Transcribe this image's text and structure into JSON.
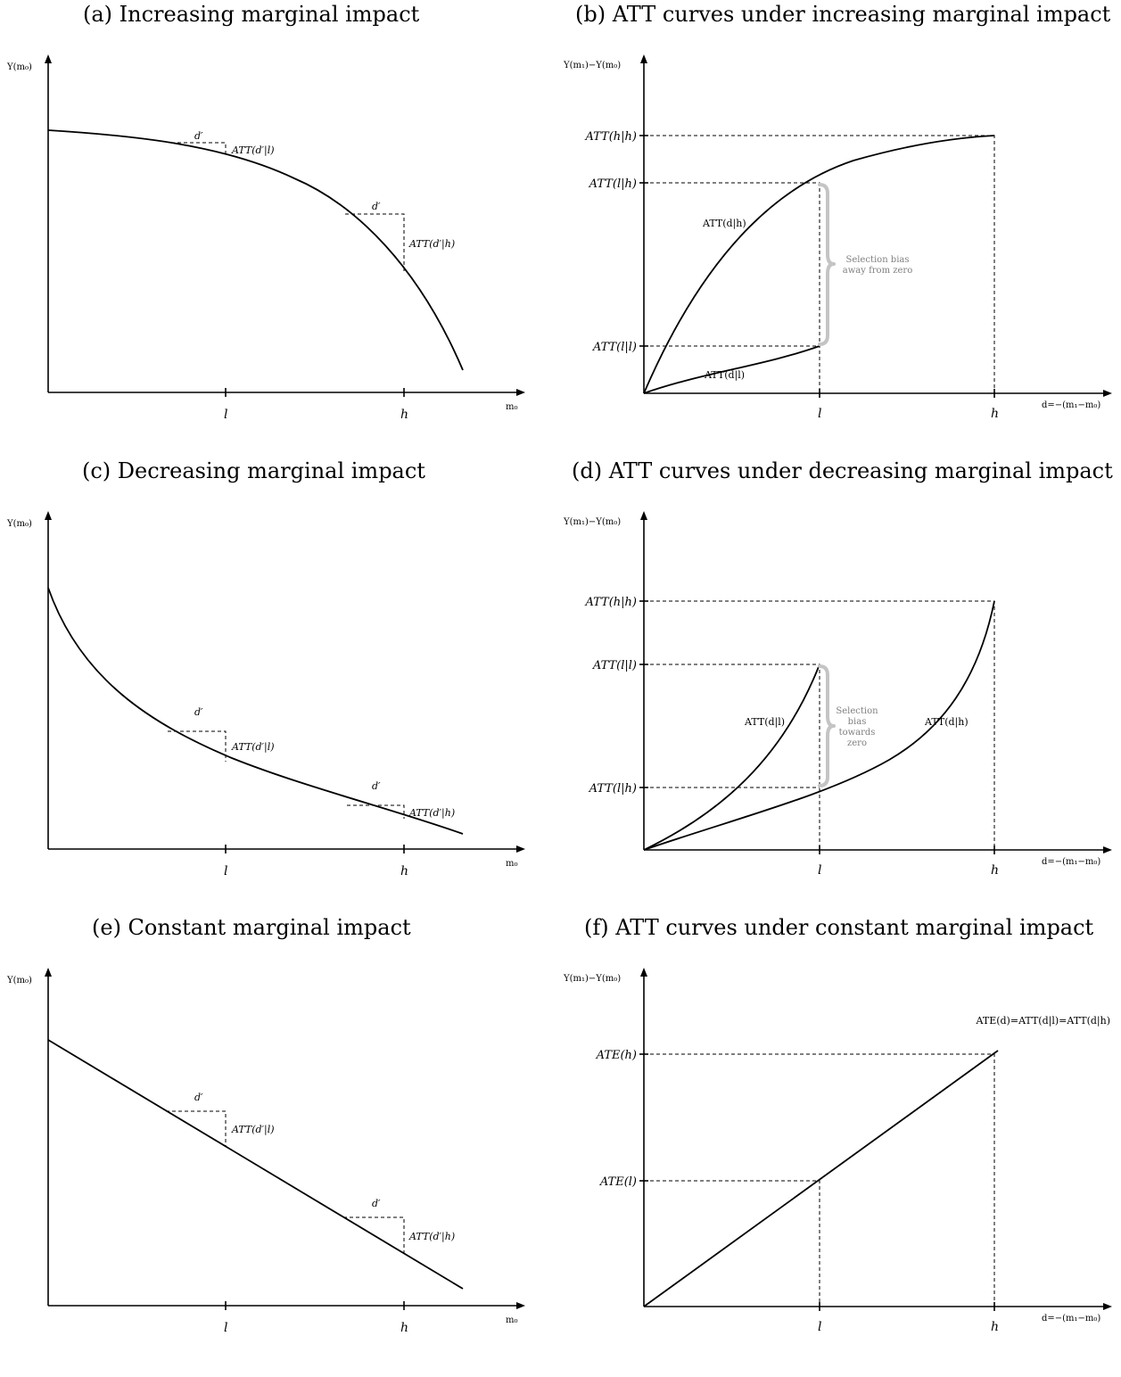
{
  "panels": {
    "a": {
      "title": "(a) Increasing marginal impact",
      "y_axis_label": "Y(m₀)",
      "x_axis_label": "m₀",
      "tick_l": "l",
      "tick_h": "h",
      "d_label_l": "d′",
      "d_label_h": "d′",
      "att_label_l": "ATT(d′|l)",
      "att_label_h": "ATT(d′|h)"
    },
    "b": {
      "title": "(b) ATT curves under increasing marginal impact",
      "y_axis_label": "Y(m₁)−Y(m₀)",
      "x_axis_label": "d=−(m₁−m₀)",
      "tick_l": "l",
      "tick_h": "h",
      "y_tick_hh": "ATT(h|h)",
      "y_tick_lh": "ATT(l|h)",
      "y_tick_ll": "ATT(l|l)",
      "curve_h_label": "ATT(d|h)",
      "curve_l_label": "ATT(d|l)",
      "bias_line1": "Selection bias",
      "bias_line2": "away from zero"
    },
    "c": {
      "title": "(c) Decreasing marginal impact",
      "y_axis_label": "Y(m₀)",
      "x_axis_label": "m₀",
      "tick_l": "l",
      "tick_h": "h",
      "d_label_l": "d′",
      "d_label_h": "d′",
      "att_label_l": "ATT(d′|l)",
      "att_label_h": "ATT(d′|h)"
    },
    "d": {
      "title": "(d) ATT curves under decreasing marginal impact",
      "y_axis_label": "Y(m₁)−Y(m₀)",
      "x_axis_label": "d=−(m₁−m₀)",
      "tick_l": "l",
      "tick_h": "h",
      "y_tick_hh": "ATT(h|h)",
      "y_tick_ll": "ATT(l|l)",
      "y_tick_lh": "ATT(l|h)",
      "curve_l_label": "ATT(d|l)",
      "curve_h_label": "ATT(d|h)",
      "bias_line1": "Selection",
      "bias_line2": "bias",
      "bias_line3": "towards",
      "bias_line4": "zero"
    },
    "e": {
      "title": "(e) Constant marginal impact",
      "y_axis_label": "Y(m₀)",
      "x_axis_label": "m₀",
      "tick_l": "l",
      "tick_h": "h",
      "d_label_l": "d′",
      "d_label_h": "d′",
      "att_label_l": "ATT(d′|l)",
      "att_label_h": "ATT(d′|h)"
    },
    "f": {
      "title": "(f) ATT curves under constant marginal impact",
      "y_axis_label": "Y(m₁)−Y(m₀)",
      "x_axis_label": "d=−(m₁−m₀)",
      "tick_l": "l",
      "tick_h": "h",
      "y_tick_h": "ATE(h)",
      "y_tick_l": "ATE(l)",
      "line_label": "ATE(d)=ATT(d|l)=ATT(d|h)"
    }
  }
}
